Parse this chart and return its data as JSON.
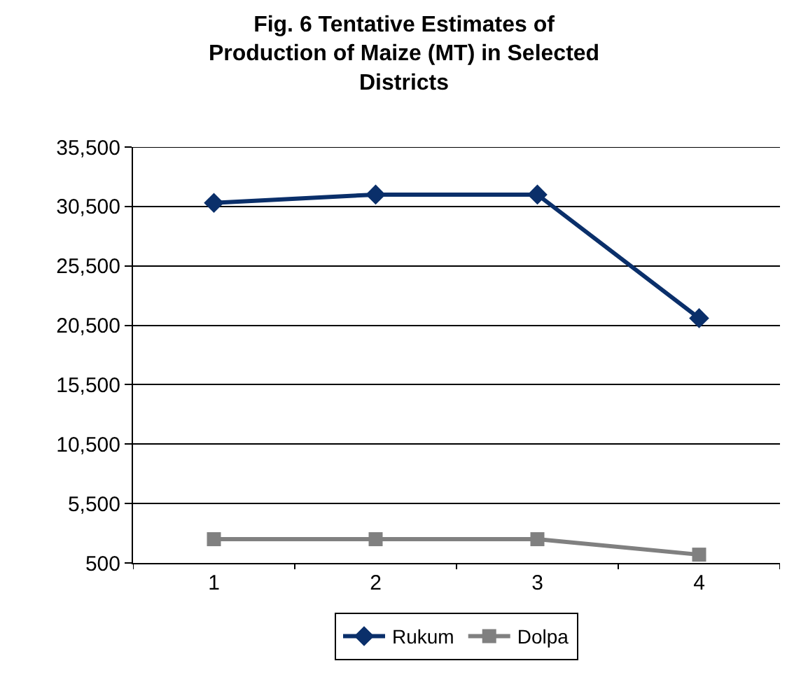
{
  "chart_data": {
    "type": "line",
    "title": "Fig. 6 Tentative Estimates of Production of Maize (MT) in Selected Districts",
    "categories": [
      "1",
      "2",
      "3",
      "4"
    ],
    "series": [
      {
        "name": "Rukum",
        "color": "#0a2f6a",
        "values": [
          30800,
          31500,
          31500,
          21100
        ],
        "marker": "diamond"
      },
      {
        "name": "Dolpa",
        "color": "#808080",
        "values": [
          2500,
          2500,
          2500,
          1200
        ],
        "marker": "square"
      }
    ],
    "ylim": [
      500,
      35500
    ],
    "yticks": [
      {
        "value": 500,
        "label": "500"
      },
      {
        "value": 5500,
        "label": "5,500"
      },
      {
        "value": 10500,
        "label": "10,500"
      },
      {
        "value": 15500,
        "label": "15,500"
      },
      {
        "value": 20500,
        "label": "20,500"
      },
      {
        "value": 25500,
        "label": "25,500"
      },
      {
        "value": 30500,
        "label": "30,500"
      },
      {
        "value": 35500,
        "label": "35,500"
      }
    ],
    "grid": "y",
    "legend": "bottom",
    "line_style": "solid"
  }
}
